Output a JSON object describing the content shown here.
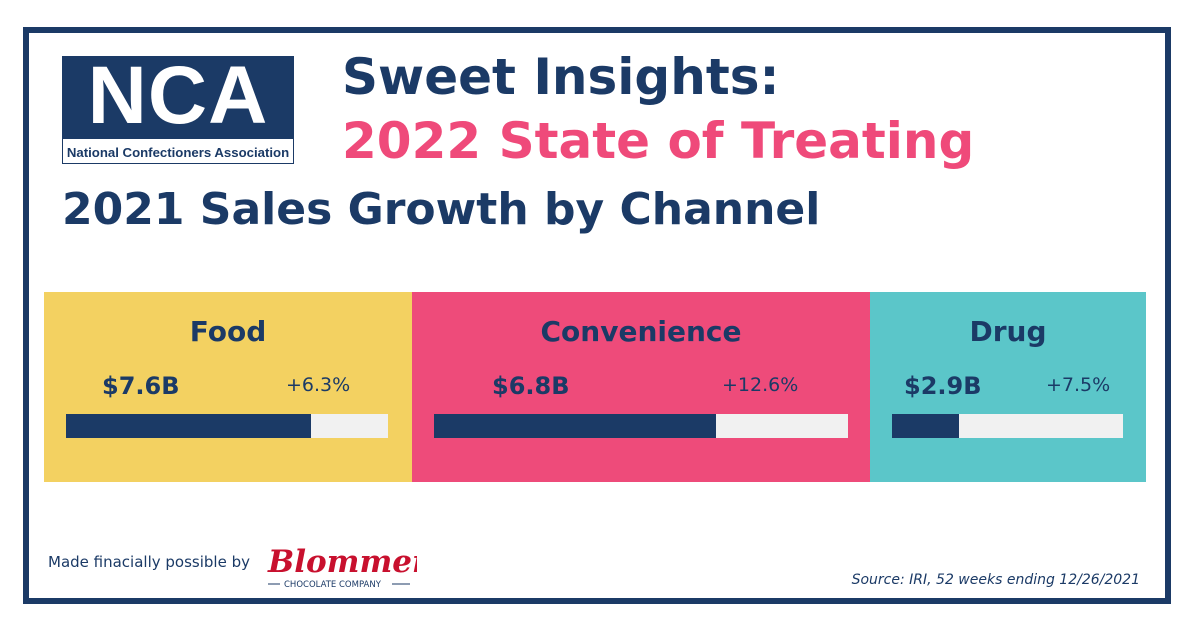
{
  "logo": {
    "letters": "NCA",
    "subtitle": "National Confectioners Association"
  },
  "header": {
    "headline": "Sweet Insights:",
    "subheadline": "2022 State of Treating"
  },
  "chart_data": {
    "type": "bar",
    "title": "2021 Sales Growth by Channel",
    "categories": [
      "Food",
      "Convenience",
      "Drug"
    ],
    "series": [
      {
        "values": [
          7.6,
          6.8,
          2.9
        ]
      }
    ],
    "value_labels": [
      "$7.6B",
      "$6.8B",
      "$2.9B"
    ],
    "growth_labels": [
      "+6.3%",
      "+12.6%",
      "+7.5%"
    ],
    "growth_percent": [
      6.3,
      12.6,
      7.5
    ],
    "bar_fill_fraction": [
      0.76,
      0.68,
      0.29
    ],
    "panel_colors": [
      "#f3d161",
      "#ee4b7a",
      "#5bc6c9"
    ],
    "bar_color": "#1b3a66",
    "track_color": "#f1f1f1",
    "ylabel": "",
    "xlabel": ""
  },
  "footer": {
    "sponsor_text": "Made finacially possible by",
    "sponsor_logo_name": "Blommer",
    "sponsor_logo_sub": "CHOCOLATE COMPANY",
    "source": "Source: IRI, 52 weeks ending 12/26/2021"
  },
  "colors": {
    "navy": "#1b3a66",
    "pink": "#ef4a7a",
    "sponsor_red": "#c8102e"
  }
}
